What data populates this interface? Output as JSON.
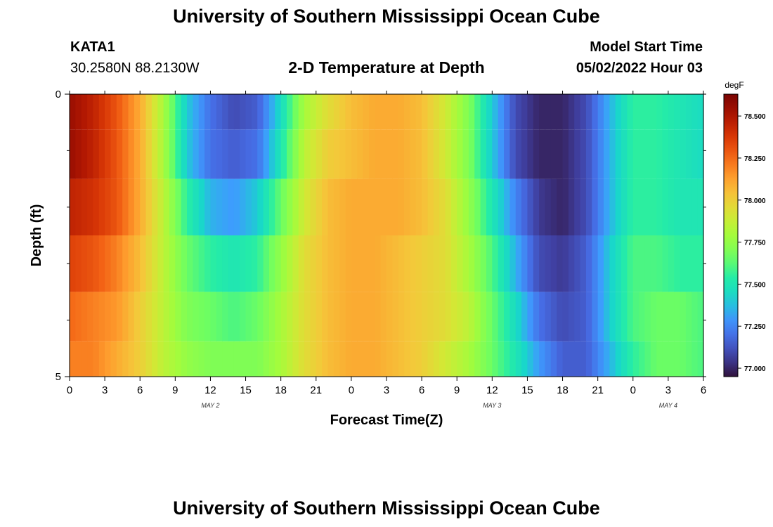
{
  "header": {
    "title": "University of Southern Mississippi Ocean Cube",
    "station": "KATA1",
    "coordinates": "30.2580N  88.2130W",
    "subtitle": "2-D Temperature at Depth",
    "model_start_label": "Model Start Time",
    "model_start_value": "05/02/2022 Hour 03"
  },
  "footer": {
    "title": "University of Southern Mississippi Ocean Cube"
  },
  "chart_data": {
    "type": "heatmap",
    "title": "2-D Temperature at Depth",
    "xlabel": "Forecast Time(Z)",
    "ylabel": "Depth (ft)",
    "colorbar_label": "degF",
    "x_tick_labels": [
      "0",
      "3",
      "6",
      "9",
      "12",
      "15",
      "18",
      "21",
      "0",
      "3",
      "6",
      "9",
      "12",
      "15",
      "18",
      "21",
      "0",
      "3",
      "6"
    ],
    "date_labels": [
      {
        "label": "MAY 2",
        "at_hour": 12
      },
      {
        "label": "MAY 3",
        "at_hour": 36
      },
      {
        "label": "MAY 4",
        "at_hour": 51
      }
    ],
    "x_range_hours": [
      0,
      54
    ],
    "y_tick_labels": [
      "0",
      "5"
    ],
    "y_range_ft": [
      0,
      5
    ],
    "depth_levels_ft": [
      0.25,
      1.0,
      2.0,
      3.0,
      4.0,
      4.75
    ],
    "color_scale": {
      "min": 76.95,
      "max": 78.63,
      "ticks": [
        "77.000",
        "77.250",
        "77.500",
        "77.750",
        "78.000",
        "78.250",
        "78.500"
      ],
      "colormap": "turbo"
    },
    "control_hours": [
      0,
      2,
      4,
      6,
      8,
      10,
      12,
      14,
      16,
      18,
      20,
      22,
      24,
      26,
      28,
      30,
      32,
      34,
      36,
      38,
      40,
      42,
      44,
      46,
      48,
      50,
      52,
      54
    ],
    "values": [
      [
        78.55,
        78.45,
        78.3,
        78.1,
        77.8,
        77.4,
        77.2,
        77.1,
        77.15,
        77.45,
        77.8,
        77.95,
        78.05,
        78.1,
        78.1,
        78.05,
        77.9,
        77.7,
        77.4,
        77.1,
        77.0,
        77.0,
        77.1,
        77.35,
        77.55,
        77.55,
        77.5,
        77.45
      ],
      [
        78.55,
        78.45,
        78.3,
        78.1,
        77.8,
        77.4,
        77.2,
        77.15,
        77.2,
        77.5,
        77.85,
        78.0,
        78.05,
        78.1,
        78.1,
        78.05,
        77.9,
        77.7,
        77.4,
        77.1,
        77.0,
        77.0,
        77.1,
        77.35,
        77.55,
        77.55,
        77.5,
        77.45
      ],
      [
        78.45,
        78.4,
        78.3,
        78.1,
        77.85,
        77.55,
        77.35,
        77.3,
        77.4,
        77.65,
        77.9,
        78.05,
        78.1,
        78.1,
        78.1,
        78.05,
        77.95,
        77.75,
        77.5,
        77.25,
        77.05,
        77.0,
        77.1,
        77.35,
        77.55,
        77.55,
        77.5,
        77.5
      ],
      [
        78.35,
        78.3,
        78.2,
        78.05,
        77.85,
        77.65,
        77.55,
        77.5,
        77.55,
        77.75,
        77.95,
        78.05,
        78.1,
        78.1,
        78.05,
        78.0,
        77.95,
        77.8,
        77.6,
        77.35,
        77.1,
        77.05,
        77.15,
        77.4,
        77.6,
        77.6,
        77.55,
        77.55
      ],
      [
        78.25,
        78.2,
        78.15,
        78.0,
        77.85,
        77.7,
        77.65,
        77.6,
        77.65,
        77.8,
        77.95,
        78.05,
        78.1,
        78.1,
        78.05,
        78.0,
        77.95,
        77.85,
        77.65,
        77.45,
        77.2,
        77.1,
        77.15,
        77.4,
        77.6,
        77.65,
        77.65,
        77.6
      ],
      [
        78.2,
        78.2,
        78.1,
        78.0,
        77.85,
        77.75,
        77.7,
        77.7,
        77.7,
        77.8,
        77.95,
        78.05,
        78.1,
        78.1,
        78.05,
        78.0,
        77.9,
        77.8,
        77.65,
        77.5,
        77.3,
        77.15,
        77.15,
        77.35,
        77.55,
        77.65,
        77.65,
        77.6
      ]
    ]
  }
}
